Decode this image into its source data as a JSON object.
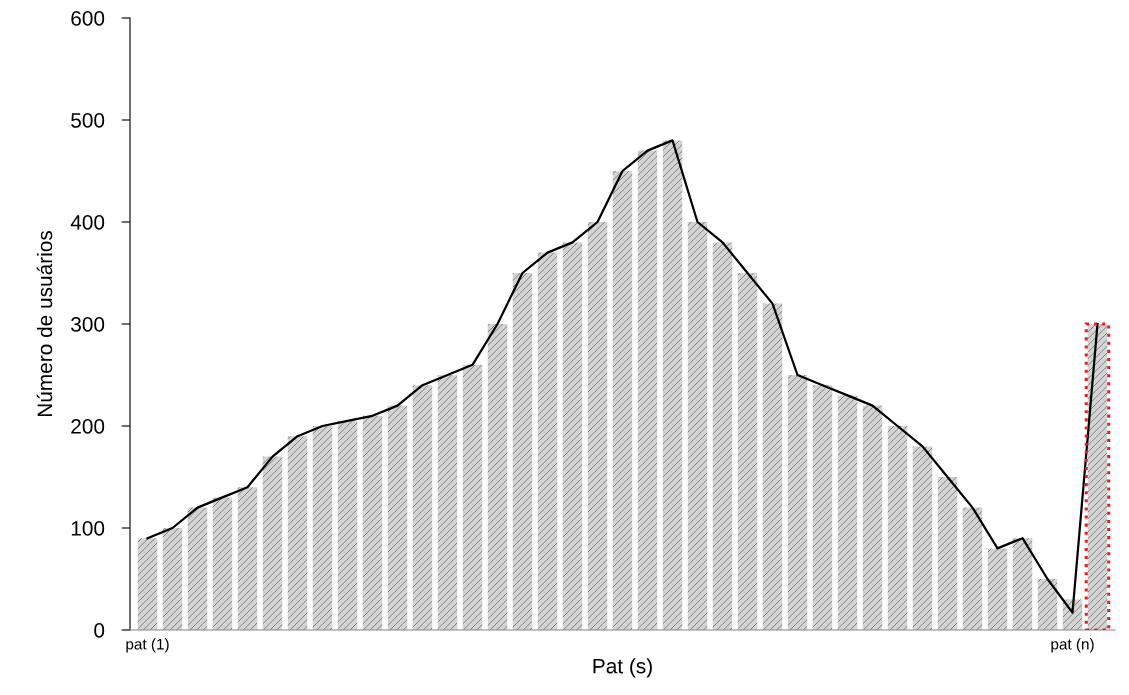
{
  "chart_data": {
    "type": "bar",
    "xlabel": "Pat (s)",
    "ylabel": "Número de usuários",
    "categories": [
      "pat (1)",
      null,
      null,
      null,
      null,
      null,
      null,
      null,
      null,
      null,
      null,
      null,
      null,
      null,
      null,
      null,
      null,
      null,
      null,
      null,
      null,
      null,
      null,
      null,
      null,
      null,
      null,
      null,
      null,
      null,
      null,
      null,
      null,
      null,
      null,
      null,
      null,
      "pat (n)",
      null
    ],
    "series": [
      {
        "color": "#d4d4d4",
        "values": [
          90,
          100,
          120,
          130,
          140,
          170,
          190,
          200,
          205,
          210,
          220,
          240,
          250,
          260,
          300,
          350,
          370,
          380,
          400,
          450,
          470,
          480,
          400,
          380,
          350,
          320,
          250,
          240,
          230,
          220,
          200,
          180,
          150,
          120,
          80,
          90,
          50,
          30,
          300
        ]
      },
      {
        "type": "bar",
        "color": "#e02020",
        "line_style": "dotted",
        "values": [
          null,
          null,
          null,
          null,
          null,
          null,
          null,
          null,
          null,
          null,
          null,
          null,
          null,
          null,
          null,
          null,
          null,
          null,
          null,
          null,
          null,
          null,
          null,
          null,
          null,
          null,
          null,
          null,
          null,
          null,
          null,
          null,
          null,
          null,
          null,
          null,
          null,
          null,
          300
        ]
      },
      {
        "type": "line",
        "color": "#000000",
        "values": [
          90,
          100,
          120,
          130,
          140,
          170,
          190,
          200,
          205,
          210,
          220,
          240,
          250,
          260,
          300,
          350,
          370,
          380,
          400,
          450,
          470,
          480,
          400,
          380,
          350,
          320,
          250,
          240,
          230,
          220,
          200,
          180,
          150,
          120,
          80,
          90,
          50,
          17,
          300
        ]
      }
    ],
    "ylim": [
      0,
      600
    ],
    "yticks": [
      0,
      100,
      200,
      300,
      400,
      500,
      600
    ],
    "grid": false,
    "marker": "none",
    "line_style": "solid"
  }
}
